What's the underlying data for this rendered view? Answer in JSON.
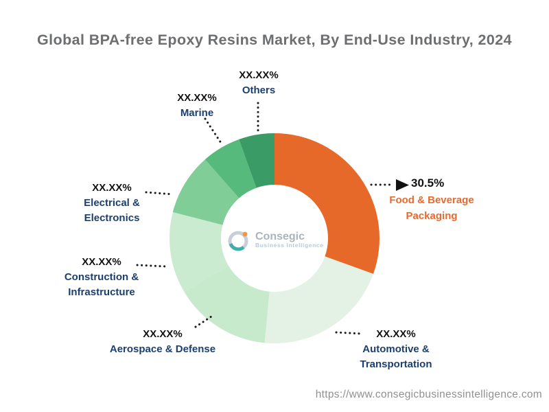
{
  "title": "Global BPA-free Epoxy Resins Market, By End-Use Industry, 2024",
  "footer_url": "https://www.consegicbusinessintelligence.com",
  "logo": {
    "brand": "Consegic",
    "tagline": "Business Intelligence"
  },
  "chart_data": {
    "type": "pie",
    "subtype": "donut",
    "title": "Global BPA-free Epoxy Resins Market, By End-Use Industry, 2024",
    "start_angle": "12 o'clock, clockwise",
    "inner_radius_ratio": 0.51,
    "legend": "none, leader-line labels",
    "segments": [
      {
        "label": "Food & Beverage Packaging",
        "display_name": "Food & Beverage\nPackaging",
        "display_value": "30.5%",
        "value_pct": 30.5,
        "color": "#e7692a"
      },
      {
        "label": "Automotive & Transportation",
        "display_name": "Automotive &\nTransportation",
        "display_value": "XX.XX%",
        "value_pct": 21.0,
        "color": "#e3f2e5"
      },
      {
        "label": "Aerospace & Defense",
        "display_name": "Aerospace & Defense",
        "display_value": "XX.XX%",
        "value_pct": 15.0,
        "color": "#c7e9cc"
      },
      {
        "label": "Construction & Infrastructure",
        "display_name": "Construction &\nInfrastructure",
        "display_value": "XX.XX%",
        "value_pct": 12.5,
        "color": "#cbebd0"
      },
      {
        "label": "Electrical & Electronics",
        "display_name": "Electrical &\nElectronics",
        "display_value": "XX.XX%",
        "value_pct": 9.5,
        "color": "#80cd98"
      },
      {
        "label": "Marine",
        "display_name": "Marine",
        "display_value": "XX.XX%",
        "value_pct": 6.0,
        "color": "#55ba7c"
      },
      {
        "label": "Others",
        "display_name": "Others",
        "display_value": "XX.XX%",
        "value_pct": 5.5,
        "color": "#3a9b66"
      }
    ]
  }
}
